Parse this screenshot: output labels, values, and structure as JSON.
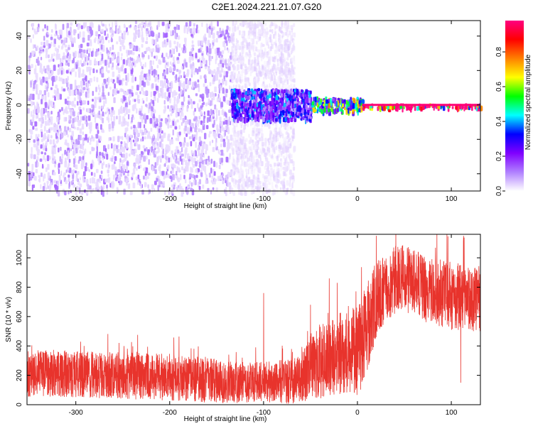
{
  "title": "C2E1.2024.221.21.07.G20",
  "colors": {
    "signal": "#e8332c",
    "axis": "#000000"
  },
  "chart_data": [
    {
      "type": "heatmap",
      "title": "C2E1.2024.221.21.07.G20",
      "xlabel": "Height of straight line (km)",
      "ylabel": "Frequency (Hz)",
      "xlim": [
        -352,
        131
      ],
      "ylim": [
        -50,
        49
      ],
      "x_ticks": [
        -300,
        -200,
        -100,
        0,
        100
      ],
      "y_ticks": [
        -40,
        -20,
        0,
        20,
        40
      ],
      "x_tick_labels": [
        "-300",
        "-200",
        "-100",
        "0",
        "100"
      ],
      "y_tick_labels": [
        "-40",
        "-20",
        "0",
        "20",
        "40"
      ],
      "colorbar": {
        "label": "Normalized spectral amplitude",
        "range": [
          0,
          0.98
        ],
        "ticks": [
          0.0,
          0.2,
          0.4,
          0.6,
          0.8
        ],
        "tick_labels": [
          "0.0",
          "0.2",
          "0.4",
          "0.6",
          "0.8"
        ],
        "colormap": [
          "#ffffff",
          "#b080ff",
          "#8000ff",
          "#0000ff",
          "#00ffff",
          "#00ff00",
          "#ffff00",
          "#ff8000",
          "#ff0000",
          "#ff0080"
        ]
      },
      "regions": [
        {
          "x_range": [
            -352,
            -135
          ],
          "frequency_spread": [
            -50,
            49
          ],
          "amplitude": 0.08,
          "note_shape": "broadband noise"
        },
        {
          "x_range": [
            -135,
            -68
          ],
          "frequency_spread": [
            -50,
            49
          ],
          "amplitude": 0.03,
          "note_shape": "faint noise"
        },
        {
          "x_range": [
            -135,
            -50
          ],
          "frequency_spread": [
            -8,
            10
          ],
          "amplitude": 0.25
        },
        {
          "x_range": [
            -50,
            5
          ],
          "frequency_spread": [
            -3,
            5
          ],
          "amplitude": 0.45
        },
        {
          "x_range": [
            5,
            131
          ],
          "frequency_spread": [
            -1,
            1
          ],
          "amplitude": 0.95
        }
      ],
      "grid": false
    },
    {
      "type": "line",
      "xlabel": "Height of straight line (km)",
      "ylabel": "SNR (10 * v/v)",
      "xlim": [
        -352,
        131
      ],
      "ylim": [
        0,
        1160
      ],
      "x_ticks": [
        -300,
        -200,
        -100,
        0,
        100
      ],
      "y_ticks": [
        0,
        200,
        400,
        600,
        800,
        1000
      ],
      "x_tick_labels": [
        "-300",
        "-200",
        "-100",
        "0",
        "100"
      ],
      "y_tick_labels": [
        "0",
        "200",
        "400",
        "600",
        "800",
        "1000"
      ],
      "series": [
        {
          "color": "#e8332c",
          "x": [
            -352,
            -330,
            -300,
            -270,
            -240,
            -210,
            -180,
            -150,
            -120,
            -100,
            -80,
            -60,
            -50,
            -40,
            -30,
            -20,
            -10,
            -5,
            0,
            5,
            10,
            15,
            20,
            30,
            40,
            50,
            60,
            70,
            80,
            90,
            100,
            110,
            120,
            131
          ],
          "y_mean": [
            210,
            215,
            210,
            200,
            195,
            190,
            180,
            160,
            150,
            150,
            155,
            170,
            260,
            300,
            320,
            350,
            380,
            380,
            360,
            420,
            520,
            620,
            720,
            790,
            850,
            860,
            840,
            780,
            760,
            760,
            740,
            730,
            720,
            720
          ],
          "y_noise_band": [
            160,
            160,
            160,
            160,
            160,
            160,
            160,
            150,
            140,
            140,
            150,
            160,
            220,
            260,
            260,
            280,
            300,
            300,
            300,
            300,
            300,
            280,
            260,
            240,
            230,
            230,
            230,
            230,
            230,
            230,
            230,
            230,
            230,
            230
          ],
          "spikes": [
            {
              "x": -100,
              "y": 760
            },
            {
              "x": -50,
              "y": 680
            },
            {
              "x": -30,
              "y": 860
            },
            {
              "x": 20,
              "y": 1150
            },
            {
              "x": 113,
              "y": 1150
            },
            {
              "x": 110,
              "y": 150
            }
          ]
        }
      ],
      "grid": false
    }
  ]
}
